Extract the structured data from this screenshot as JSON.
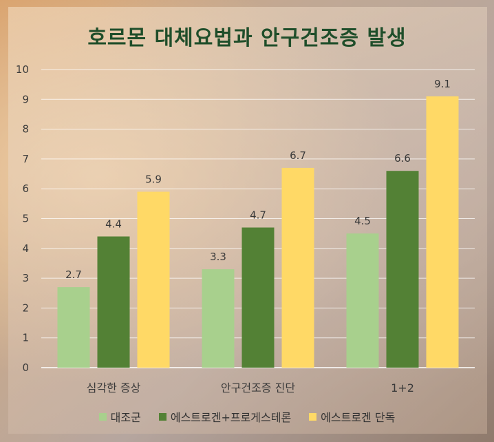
{
  "chart_data": {
    "type": "bar",
    "title": "호르몬 대체요법과 안구건조증 발생",
    "categories": [
      "심각한 증상",
      "안구건조증 진단",
      "1+2"
    ],
    "series": [
      {
        "name": "대조군",
        "values": [
          2.7,
          3.3,
          4.5
        ],
        "color": "#a8d08d"
      },
      {
        "name": "에스트로겐+프로게스테론",
        "values": [
          4.4,
          4.7,
          6.6
        ],
        "color": "#538135"
      },
      {
        "name": "에스트로겐 단독",
        "values": [
          5.9,
          6.7,
          9.1
        ],
        "color": "#ffd966"
      }
    ],
    "ylim": [
      0,
      10
    ],
    "yticks": [
      0,
      1,
      2,
      3,
      4,
      5,
      6,
      7,
      8,
      9,
      10
    ],
    "grid": true,
    "legend_position": "bottom"
  }
}
